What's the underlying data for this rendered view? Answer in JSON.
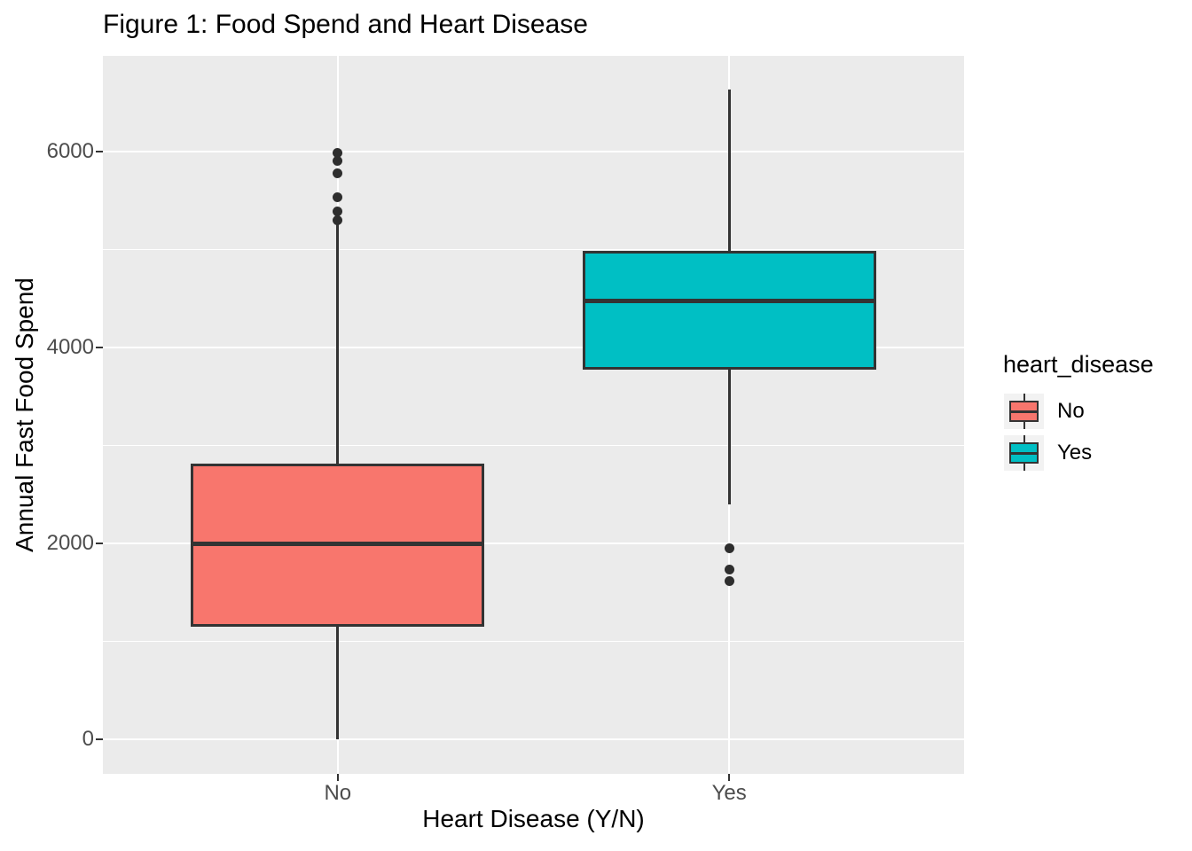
{
  "chart_data": {
    "type": "boxplot",
    "title": "Figure 1: Food Spend and Heart Disease",
    "xlabel": "Heart Disease (Y/N)",
    "ylabel": "Annual Fast Food Spend",
    "categories": [
      "No",
      "Yes"
    ],
    "series": [
      {
        "name": "No",
        "color": "#F8766D",
        "q1": 1150,
        "median": 2000,
        "q3": 2820,
        "whisker_low": 0,
        "whisker_high": 5260,
        "outliers": [
          5300,
          5390,
          5540,
          5780,
          5910,
          5990
        ]
      },
      {
        "name": "Yes",
        "color": "#00BFC4",
        "q1": 3780,
        "median": 4480,
        "q3": 4990,
        "whisker_low": 2400,
        "whisker_high": 6640,
        "outliers": [
          1620,
          1740,
          1950
        ]
      }
    ],
    "y_ticks": [
      0,
      2000,
      4000,
      6000
    ],
    "y_minor_ticks": [
      1000,
      3000,
      5000
    ],
    "ylim": [
      -350,
      6980
    ],
    "grid": "on",
    "legend": {
      "title": "heart_disease",
      "position": "right",
      "entries": [
        {
          "label": "No",
          "color": "#F8766D"
        },
        {
          "label": "Yes",
          "color": "#00BFC4"
        }
      ]
    },
    "colors": {
      "panel_background": "#EBEBEB",
      "grid": "#FFFFFF",
      "box_stroke": "#333333",
      "tick_label": "#4D4D4D",
      "text": "#000000",
      "legend_key_background": "#F2F2F2"
    }
  }
}
